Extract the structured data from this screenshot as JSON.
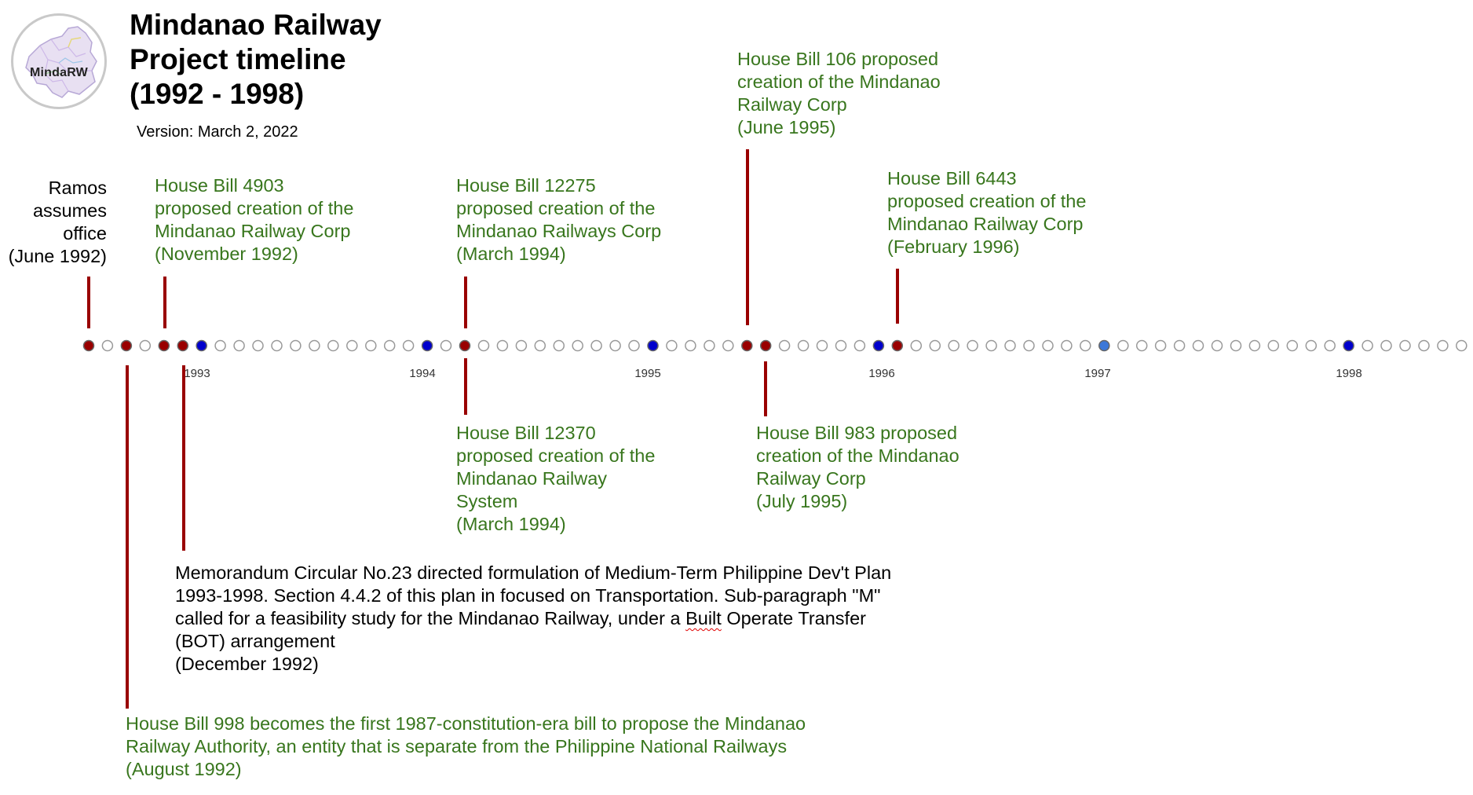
{
  "header": {
    "logo_text": "MindaRW",
    "title_lines": [
      "Mindanao Railway",
      "Project timeline",
      "(1992 - 1998)"
    ],
    "version": "Version: March 2, 2022"
  },
  "timeline": {
    "dot_count": 74,
    "red_dots": [
      0,
      2,
      4,
      5,
      20,
      35,
      36,
      43
    ],
    "blue_dots": [
      6,
      18,
      30,
      42,
      54,
      67
    ],
    "year_labels": [
      "1993",
      "1994",
      "1995",
      "1996",
      "1997",
      "1998"
    ],
    "colors": {
      "red_dot": "#990000",
      "blue_dot": "#0000cc",
      "blue_dot_light": "#3c78d8",
      "empty_dot_border": "#999999",
      "stem": "#990000",
      "green_text": "#38761d"
    }
  },
  "events": {
    "ramos": [
      "Ramos",
      "assumes",
      "office",
      "(June 1992)"
    ],
    "hb4903": [
      "House Bill 4903",
      "proposed creation of the",
      "Mindanao Railway Corp",
      "(November 1992)"
    ],
    "hb12275": [
      "House Bill 12275",
      "proposed creation of the",
      "Mindanao Railways Corp",
      "(March 1994)"
    ],
    "hb106": [
      "House Bill 106 proposed",
      "creation of the Mindanao",
      "Railway Corp",
      "(June 1995)"
    ],
    "hb6443": [
      "House Bill 6443",
      "proposed creation of the",
      "Mindanao Railway Corp",
      "(February 1996)"
    ],
    "hb12370": [
      "House Bill 12370",
      "proposed creation of the",
      "Mindanao Railway",
      "System",
      "(March 1994)"
    ],
    "hb983": [
      "House Bill 983 proposed",
      "creation of the Mindanao",
      "Railway Corp",
      "(July 1995)"
    ],
    "memo": {
      "line1": "Memorandum Circular No.23 directed formulation of Medium-Term Philippine Dev't Plan",
      "line2": "1993-1998. Section 4.4.2 of this plan in focused on Transportation. Sub-paragraph \"M\"",
      "line3_a": "called for a feasibility study for the Mindanao Railway, under a ",
      "line3_b": "Built",
      "line3_c": " Operate Transfer",
      "line4": "(BOT) arrangement",
      "line5": "(December 1992)"
    },
    "hb998": [
      "House Bill 998 becomes the first 1987-constitution-era bill to propose the Mindanao",
      "Railway Authority, an entity that is separate from the Philippine National Railways",
      "(August 1992)"
    ]
  }
}
